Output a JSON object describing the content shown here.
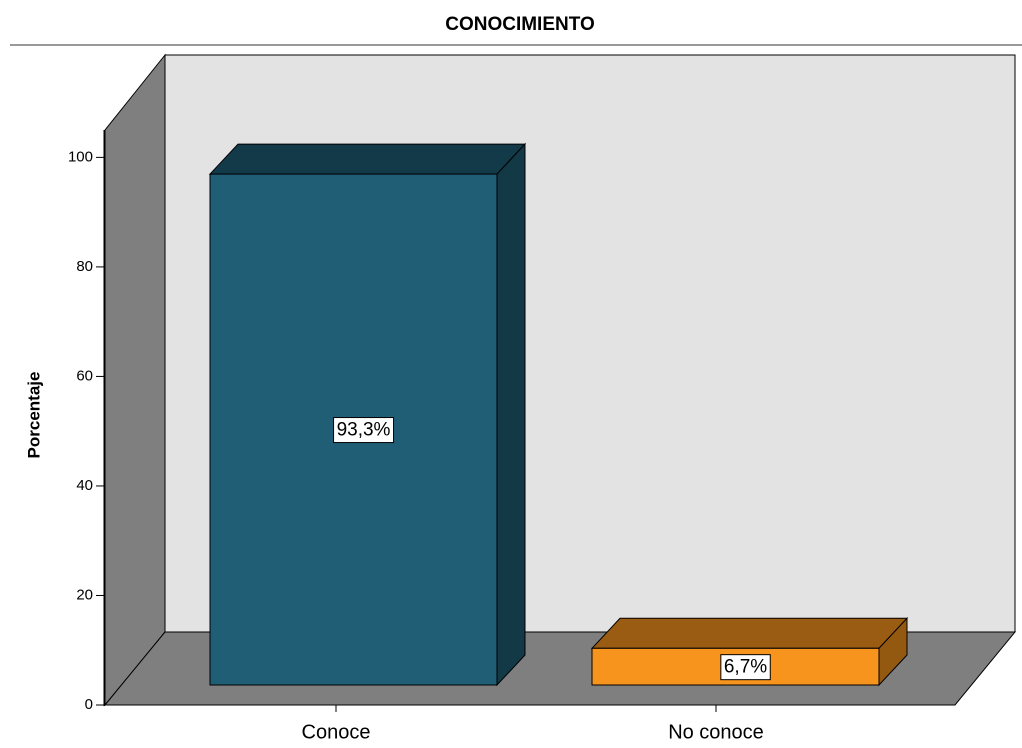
{
  "chart_data": {
    "type": "bar",
    "title": "CONOCIMIENTO",
    "y_label": "Porcentaje",
    "categories": [
      "Conoce",
      "No conoce"
    ],
    "values": [
      93.3,
      6.7
    ],
    "value_labels": [
      "93,3%",
      "6,7%"
    ],
    "colors": [
      "#1f5e75",
      "#f7941d"
    ],
    "ylim": [
      0,
      105
    ],
    "yticks": [
      0,
      20,
      40,
      60,
      80,
      100
    ]
  }
}
